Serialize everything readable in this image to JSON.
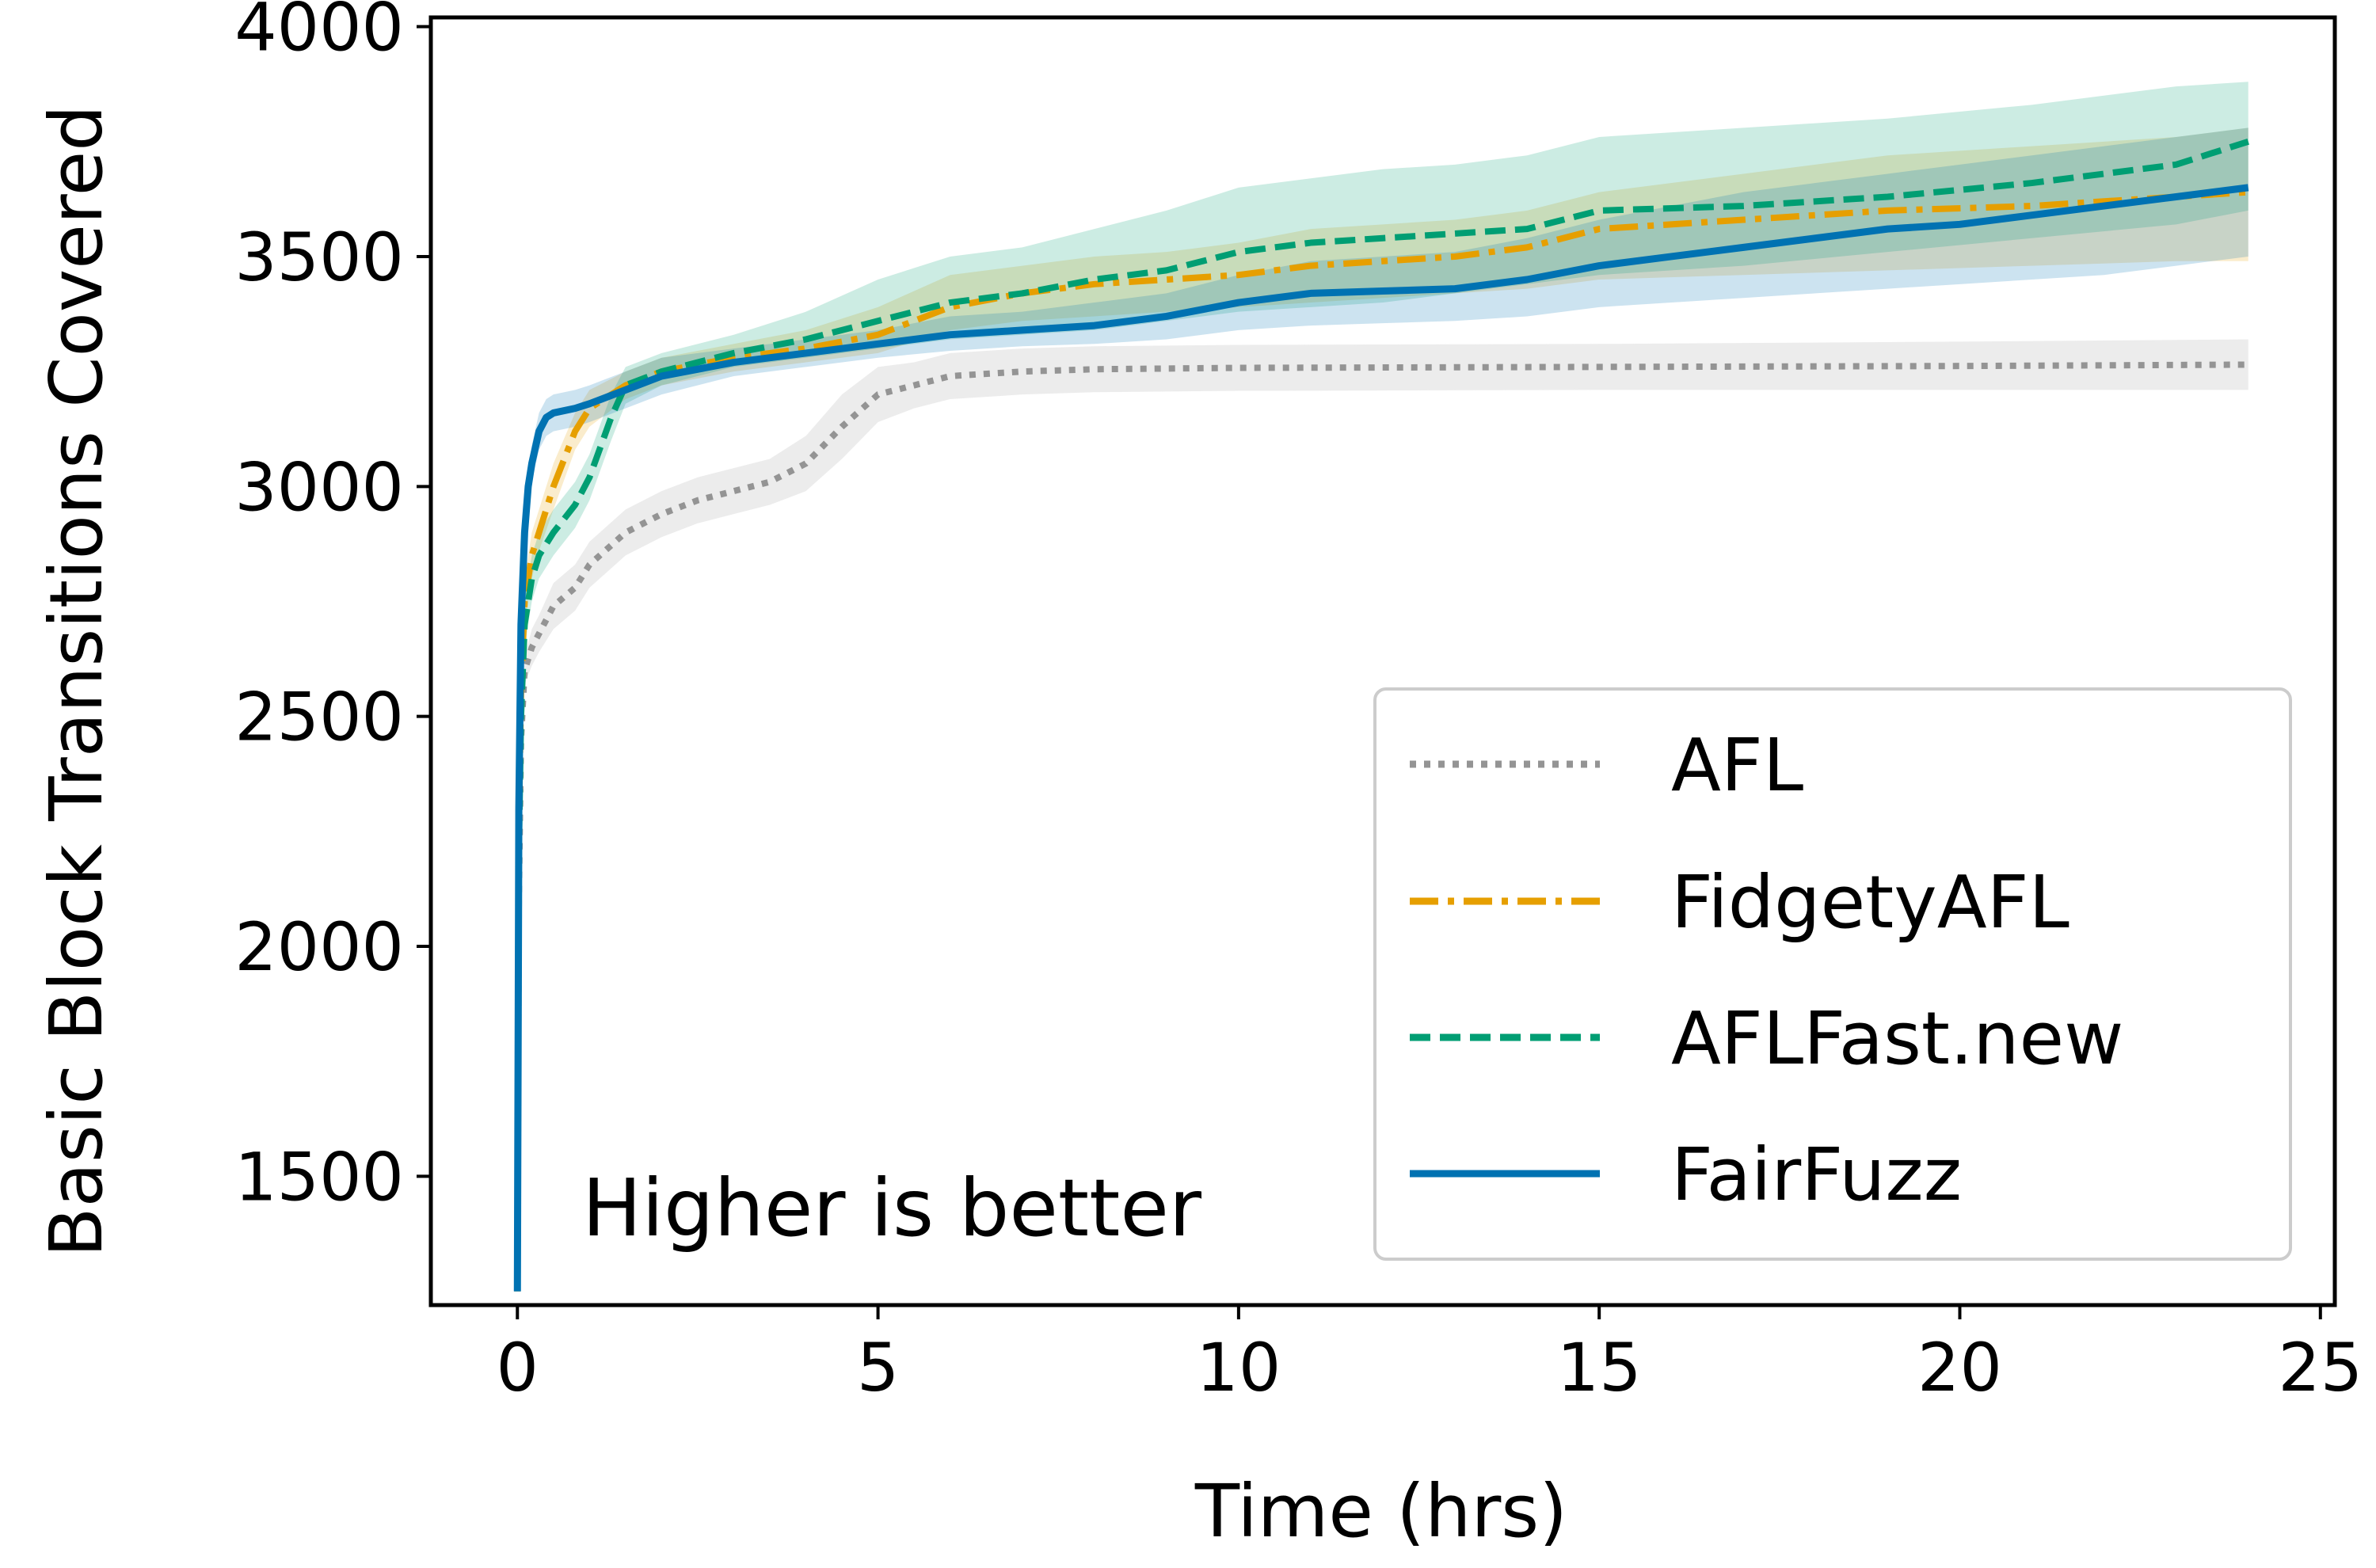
{
  "chart_data": {
    "type": "line",
    "title": "",
    "xlabel": "Time (hrs)",
    "ylabel": "Basic Block Transitions Covered",
    "xlim": [
      -1.2,
      25.2
    ],
    "ylim": [
      1220,
      4020
    ],
    "xticks": [
      0,
      5,
      10,
      15,
      20,
      25
    ],
    "xtick_labels": [
      "0",
      "5",
      "10",
      "15",
      "20",
      "25"
    ],
    "yticks": [
      1500,
      2000,
      2500,
      3000,
      3500,
      4000
    ],
    "ytick_labels": [
      "1500",
      "2000",
      "2500",
      "3000",
      "3500",
      "4000"
    ],
    "legend_position": "lower-right",
    "annotation": "Higher is better",
    "series": [
      {
        "name": "AFL",
        "color": "#949494",
        "style": "dotted",
        "x": [
          0,
          0.02,
          0.05,
          0.1,
          0.2,
          0.3,
          0.5,
          0.8,
          1.0,
          1.5,
          2.0,
          2.5,
          3.0,
          3.5,
          4.0,
          4.5,
          5.0,
          5.5,
          6.0,
          7.0,
          8.0,
          10.0,
          15.0,
          20.0,
          24.0
        ],
        "y": [
          1250,
          2100,
          2450,
          2600,
          2650,
          2680,
          2740,
          2780,
          2830,
          2900,
          2940,
          2970,
          2990,
          3010,
          3050,
          3130,
          3200,
          3220,
          3240,
          3250,
          3255,
          3258,
          3260,
          3262,
          3265
        ],
        "lower": [
          1250,
          2080,
          2420,
          2570,
          2610,
          2640,
          2690,
          2730,
          2780,
          2850,
          2890,
          2920,
          2940,
          2960,
          2990,
          3060,
          3140,
          3170,
          3190,
          3200,
          3205,
          3208,
          3210,
          3210,
          3210
        ],
        "upper": [
          1250,
          2120,
          2480,
          2630,
          2690,
          2720,
          2790,
          2830,
          2880,
          2950,
          2990,
          3020,
          3040,
          3060,
          3110,
          3200,
          3260,
          3270,
          3290,
          3300,
          3305,
          3308,
          3310,
          3315,
          3320
        ]
      },
      {
        "name": "FidgetyAFL",
        "color": "#E69F00",
        "style": "dashdot",
        "x": [
          0,
          0.02,
          0.05,
          0.1,
          0.2,
          0.3,
          0.5,
          0.8,
          1.0,
          1.5,
          2.0,
          3.0,
          4.0,
          5.0,
          6.0,
          7.0,
          8.0,
          9.0,
          10.0,
          11.0,
          12.0,
          13.0,
          14.0,
          15.0,
          17.0,
          19.0,
          21.0,
          23.0,
          24.0
        ],
        "y": [
          1250,
          2250,
          2550,
          2750,
          2850,
          2900,
          3000,
          3120,
          3170,
          3220,
          3250,
          3280,
          3300,
          3330,
          3390,
          3420,
          3440,
          3450,
          3460,
          3480,
          3490,
          3500,
          3520,
          3560,
          3580,
          3600,
          3610,
          3630,
          3640
        ],
        "lower": [
          1250,
          2200,
          2500,
          2700,
          2800,
          2860,
          2950,
          3080,
          3130,
          3190,
          3220,
          3250,
          3270,
          3290,
          3340,
          3360,
          3370,
          3380,
          3390,
          3400,
          3410,
          3420,
          3430,
          3450,
          3460,
          3470,
          3480,
          3490,
          3490
        ],
        "upper": [
          1250,
          2300,
          2600,
          2800,
          2900,
          2950,
          3050,
          3160,
          3210,
          3250,
          3280,
          3310,
          3340,
          3390,
          3460,
          3480,
          3500,
          3510,
          3530,
          3560,
          3570,
          3580,
          3600,
          3640,
          3680,
          3720,
          3740,
          3760,
          3780
        ]
      },
      {
        "name": "AFLFast.new",
        "color": "#009E73",
        "style": "dashed",
        "x": [
          0,
          0.02,
          0.05,
          0.1,
          0.2,
          0.3,
          0.5,
          0.8,
          1.0,
          1.3,
          1.5,
          2.0,
          3.0,
          4.0,
          5.0,
          6.0,
          7.0,
          8.0,
          9.0,
          10.0,
          11.0,
          12.0,
          13.0,
          14.0,
          15.0,
          17.0,
          19.0,
          21.0,
          23.0,
          24.0
        ],
        "y": [
          1250,
          2200,
          2500,
          2700,
          2800,
          2850,
          2900,
          2960,
          3020,
          3150,
          3220,
          3250,
          3290,
          3320,
          3360,
          3400,
          3420,
          3450,
          3470,
          3510,
          3530,
          3540,
          3550,
          3560,
          3600,
          3610,
          3630,
          3660,
          3700,
          3750
        ],
        "lower": [
          1250,
          2150,
          2450,
          2650,
          2750,
          2800,
          2850,
          2910,
          2970,
          3100,
          3180,
          3220,
          3260,
          3280,
          3300,
          3320,
          3330,
          3340,
          3360,
          3380,
          3390,
          3400,
          3420,
          3440,
          3460,
          3480,
          3510,
          3540,
          3570,
          3600
        ],
        "upper": [
          1250,
          2250,
          2550,
          2750,
          2850,
          2900,
          2950,
          3010,
          3070,
          3200,
          3260,
          3290,
          3330,
          3380,
          3450,
          3500,
          3520,
          3560,
          3600,
          3650,
          3670,
          3690,
          3700,
          3720,
          3760,
          3780,
          3800,
          3830,
          3870,
          3880
        ]
      },
      {
        "name": "FairFuzz",
        "color": "#0072B2",
        "style": "solid",
        "x": [
          0,
          0.02,
          0.05,
          0.1,
          0.15,
          0.2,
          0.3,
          0.4,
          0.5,
          0.8,
          1.0,
          1.5,
          2.0,
          3.0,
          4.0,
          5.0,
          6.0,
          7.0,
          8.0,
          9.0,
          10.0,
          11.0,
          12.0,
          13.0,
          14.0,
          15.0,
          16.0,
          17.0,
          18.0,
          19.0,
          20.0,
          21.0,
          22.0,
          23.0,
          24.0
        ],
        "y": [
          1250,
          2300,
          2700,
          2900,
          3000,
          3050,
          3120,
          3150,
          3160,
          3170,
          3180,
          3210,
          3240,
          3270,
          3290,
          3310,
          3330,
          3340,
          3350,
          3370,
          3400,
          3420,
          3425,
          3430,
          3450,
          3480,
          3500,
          3520,
          3540,
          3560,
          3570,
          3590,
          3610,
          3630,
          3650
        ],
        "lower": [
          1250,
          2250,
          2650,
          2860,
          2960,
          3010,
          3080,
          3110,
          3120,
          3130,
          3140,
          3170,
          3200,
          3240,
          3260,
          3280,
          3295,
          3305,
          3310,
          3320,
          3340,
          3350,
          3355,
          3360,
          3370,
          3390,
          3400,
          3410,
          3420,
          3430,
          3440,
          3450,
          3460,
          3480,
          3500
        ],
        "upper": [
          1250,
          2350,
          2750,
          2940,
          3040,
          3090,
          3160,
          3190,
          3200,
          3210,
          3220,
          3250,
          3280,
          3300,
          3320,
          3340,
          3370,
          3380,
          3400,
          3420,
          3460,
          3490,
          3500,
          3510,
          3540,
          3580,
          3610,
          3640,
          3660,
          3680,
          3700,
          3720,
          3740,
          3760,
          3780
        ]
      }
    ]
  }
}
